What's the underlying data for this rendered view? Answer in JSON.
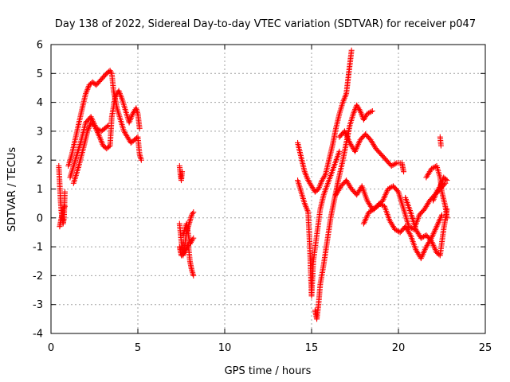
{
  "chart_data": {
    "type": "scatter",
    "title": "Day 138 of 2022, Sidereal Day-to-day VTEC variation (SDTVAR) for receiver p047",
    "xlabel": "GPS time / hours",
    "ylabel": "SDTVAR / TECUs",
    "xlim": [
      0,
      25
    ],
    "ylim": [
      -4,
      6
    ],
    "xticks": [
      0,
      5,
      10,
      15,
      20,
      25
    ],
    "yticks": [
      -4,
      -3,
      -2,
      -1,
      0,
      1,
      2,
      3,
      4,
      5,
      6
    ],
    "grid": true,
    "marker": "+",
    "series": [
      {
        "name": "SDTVAR",
        "color": "#ff0000",
        "traces": [
          {
            "x": [
              0.45,
              0.5,
              0.55,
              0.6,
              0.7,
              0.75,
              0.8
            ],
            "y": [
              1.8,
              1.2,
              0.6,
              0.2,
              -0.2,
              0.0,
              0.9
            ]
          },
          {
            "x": [
              0.5,
              0.6,
              0.7,
              0.8
            ],
            "y": [
              -0.3,
              0.0,
              0.3,
              0.4
            ]
          },
          {
            "x": [
              1.0,
              1.2,
              1.5,
              1.8,
              2.0,
              2.2,
              2.4,
              2.6,
              2.9,
              3.2,
              3.4,
              3.5,
              3.6,
              3.8,
              4.0,
              4.2,
              4.4,
              4.6,
              4.8,
              5.0,
              5.1,
              5.2
            ],
            "y": [
              1.8,
              2.2,
              3.0,
              3.8,
              4.3,
              4.6,
              4.7,
              4.6,
              4.8,
              5.0,
              5.1,
              5.0,
              4.4,
              3.8,
              3.4,
              3.0,
              2.8,
              2.6,
              2.7,
              2.8,
              2.2,
              2.0
            ]
          },
          {
            "x": [
              1.3,
              1.6,
              1.9,
              2.1,
              2.3,
              2.5,
              2.8,
              3.0,
              3.2,
              3.4,
              3.5,
              3.7,
              3.9,
              4.1,
              4.3,
              4.5,
              4.7,
              4.9,
              5.0,
              5.1
            ],
            "y": [
              1.2,
              1.8,
              2.5,
              3.0,
              3.3,
              3.2,
              2.8,
              2.5,
              2.4,
              2.5,
              3.5,
              4.2,
              4.4,
              4.1,
              3.7,
              3.3,
              3.6,
              3.8,
              3.6,
              3.1
            ]
          },
          {
            "x": [
              1.1,
              1.4,
              1.7,
              2.0,
              2.3,
              2.6,
              2.9,
              3.3
            ],
            "y": [
              1.4,
              2.0,
              2.6,
              3.3,
              3.5,
              3.1,
              3.0,
              3.2
            ]
          },
          {
            "x": [
              7.4,
              7.45,
              7.5,
              7.55
            ],
            "y": [
              1.8,
              1.5,
              1.3,
              1.6
            ]
          },
          {
            "x": [
              7.4,
              7.5,
              7.6,
              7.7,
              7.8,
              7.9,
              8.0,
              8.1,
              8.2
            ],
            "y": [
              -0.2,
              -0.8,
              -1.3,
              -1.0,
              -0.5,
              -0.3,
              -0.1,
              0.1,
              0.2
            ]
          },
          {
            "x": [
              7.4,
              7.5,
              7.7,
              7.9,
              8.0,
              8.1,
              8.2
            ],
            "y": [
              -1.0,
              -1.3,
              -1.2,
              -0.9,
              -1.5,
              -1.8,
              -2.0
            ]
          },
          {
            "x": [
              7.6,
              7.8,
              8.0,
              8.2
            ],
            "y": [
              -0.6,
              -0.2,
              -0.9,
              -0.7
            ]
          },
          {
            "x": [
              14.2,
              14.4,
              14.6,
              14.8,
              15.0,
              15.2,
              15.4,
              15.6,
              15.8,
              16.0,
              16.2,
              16.4,
              16.6,
              16.8,
              17.0,
              17.1,
              17.2,
              17.3
            ],
            "y": [
              2.6,
              2.1,
              1.6,
              1.3,
              1.1,
              0.9,
              1.0,
              1.3,
              1.5,
              2.0,
              2.5,
              3.1,
              3.6,
              4.0,
              4.3,
              4.8,
              5.3,
              5.8
            ]
          },
          {
            "x": [
              14.2,
              14.4,
              14.6,
              14.8,
              14.9,
              15.0,
              15.1,
              15.3,
              15.5,
              15.7,
              16.0,
              16.3,
              16.6
            ],
            "y": [
              1.3,
              0.9,
              0.5,
              0.2,
              -1.0,
              -2.7,
              -1.5,
              -0.6,
              0.3,
              0.8,
              1.3,
              1.8,
              2.3
            ]
          },
          {
            "x": [
              15.2,
              15.3,
              15.4,
              15.5,
              15.7,
              15.9,
              16.1,
              16.3,
              16.5,
              16.8,
              17.0,
              17.2,
              17.4,
              17.6,
              17.8,
              18.0,
              18.2,
              18.5
            ],
            "y": [
              -3.2,
              -3.5,
              -3.0,
              -2.3,
              -1.6,
              -0.8,
              0.0,
              0.6,
              1.2,
              2.0,
              2.6,
              3.2,
              3.6,
              3.9,
              3.7,
              3.4,
              3.6,
              3.7
            ]
          },
          {
            "x": [
              16.6,
              16.9,
              17.2,
              17.5,
              17.8,
              18.1,
              18.4,
              18.7,
              19.0,
              19.3,
              19.6,
              19.9,
              20.2,
              20.3
            ],
            "y": [
              2.8,
              3.0,
              2.6,
              2.3,
              2.7,
              2.9,
              2.7,
              2.4,
              2.2,
              2.0,
              1.8,
              1.9,
              1.9,
              1.6
            ]
          },
          {
            "x": [
              16.4,
              16.7,
              17.0,
              17.3,
              17.6,
              17.9,
              18.2,
              18.5,
              18.8,
              19.1,
              19.4,
              19.7,
              20.0,
              20.3,
              20.6,
              20.9,
              21.2,
              21.5,
              21.8,
              22.1,
              22.4,
              22.7
            ],
            "y": [
              0.8,
              1.1,
              1.3,
              1.0,
              0.8,
              1.1,
              0.6,
              0.3,
              0.4,
              0.6,
              1.0,
              1.1,
              0.9,
              0.3,
              -0.3,
              -0.4,
              0.1,
              0.3,
              0.6,
              0.8,
              1.0,
              1.2
            ]
          },
          {
            "x": [
              18.0,
              18.3,
              18.6,
              18.9,
              19.2,
              19.5,
              19.8,
              20.1,
              20.4,
              20.7,
              21.0,
              21.3,
              21.6,
              21.9,
              22.2,
              22.5
            ],
            "y": [
              -0.2,
              0.2,
              0.3,
              0.5,
              0.4,
              -0.1,
              -0.4,
              -0.5,
              -0.3,
              -0.6,
              -1.1,
              -1.4,
              -1.0,
              -0.7,
              -0.3,
              0.1
            ]
          },
          {
            "x": [
              20.4,
              20.7,
              21.0,
              21.3,
              21.6,
              21.9,
              22.2,
              22.4,
              22.6,
              22.8
            ],
            "y": [
              0.7,
              0.2,
              -0.4,
              -0.7,
              -0.6,
              -0.8,
              -1.2,
              -1.3,
              -0.4,
              0.3
            ]
          },
          {
            "x": [
              21.6,
              21.9,
              22.2,
              22.4,
              22.5,
              22.7,
              22.8
            ],
            "y": [
              1.4,
              1.7,
              1.8,
              1.4,
              0.9,
              0.4,
              0.0
            ]
          },
          {
            "x": [
              22.0,
              22.2,
              22.4,
              22.6,
              22.8
            ],
            "y": [
              0.6,
              0.9,
              1.1,
              1.4,
              1.3
            ]
          },
          {
            "x": [
              22.4,
              22.45
            ],
            "y": [
              2.8,
              2.5
            ]
          }
        ]
      }
    ]
  }
}
